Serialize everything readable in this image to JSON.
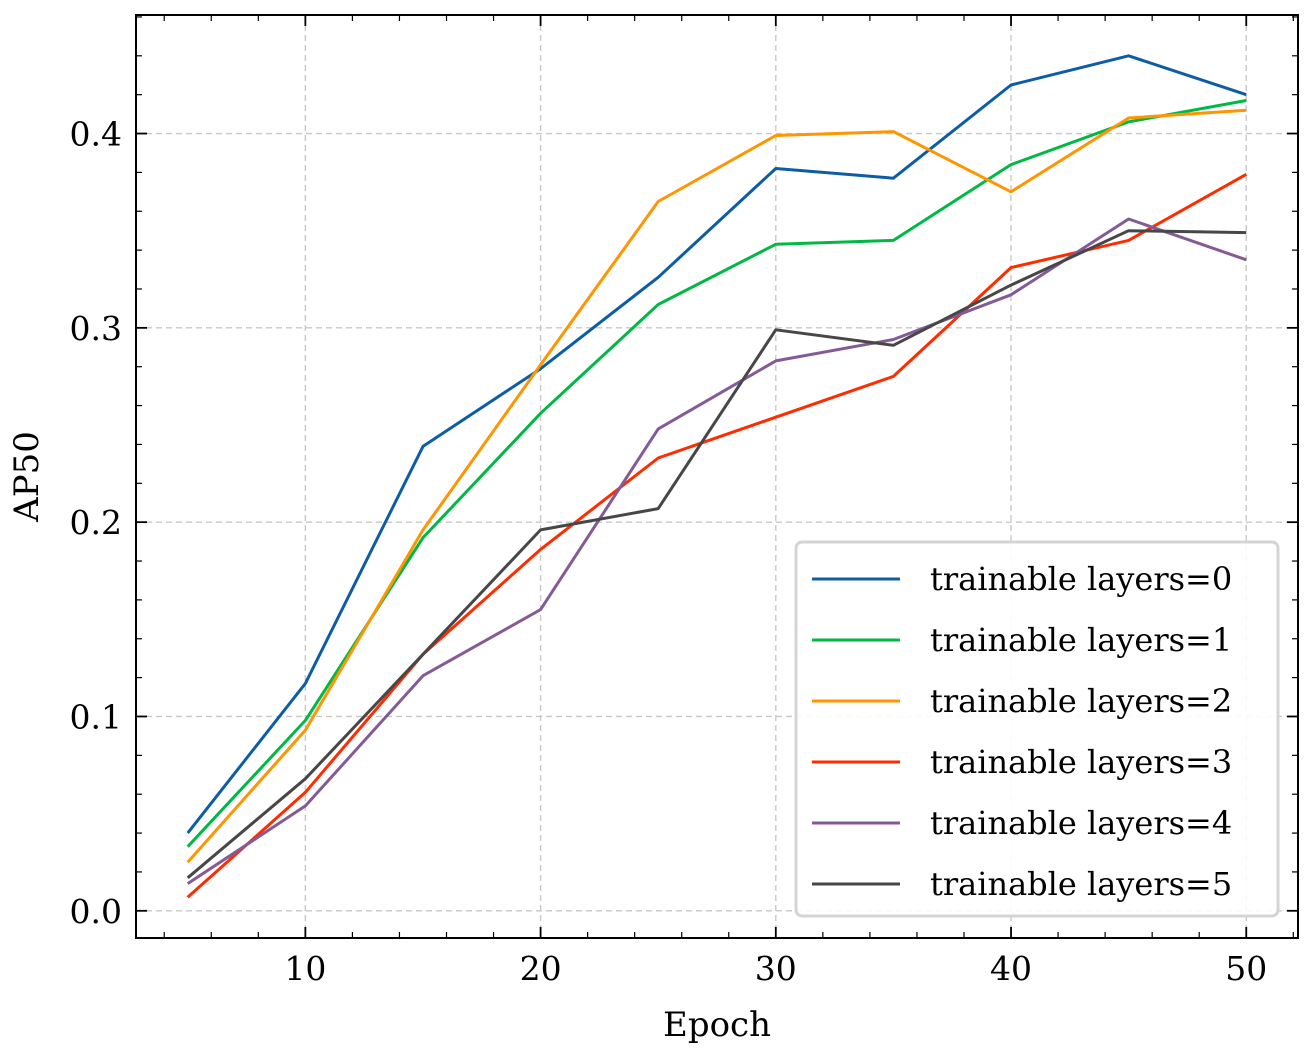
{
  "chart_data": {
    "type": "line",
    "title": "",
    "xlabel": "Epoch",
    "ylabel": "AP50",
    "xlim": [
      2.8,
      52.2
    ],
    "ylim": [
      -0.014,
      0.461
    ],
    "xticks": [
      10,
      20,
      30,
      40,
      50
    ],
    "xtick_labels": [
      "10",
      "20",
      "30",
      "40",
      "50"
    ],
    "yticks": [
      0.0,
      0.1,
      0.2,
      0.3,
      0.4
    ],
    "ytick_labels": [
      "0.0",
      "0.1",
      "0.2",
      "0.3",
      "0.4"
    ],
    "grid": true,
    "legend_position": "lower-right",
    "x": [
      5,
      10,
      15,
      20,
      25,
      30,
      35,
      40,
      45,
      50
    ],
    "series": [
      {
        "name": "trainable layers=0",
        "color": "#0c5da5",
        "values": [
          0.04,
          0.117,
          0.239,
          0.279,
          0.326,
          0.382,
          0.377,
          0.425,
          0.44,
          0.42
        ]
      },
      {
        "name": "trainable layers=1",
        "color": "#00b945",
        "values": [
          0.033,
          0.098,
          0.192,
          0.256,
          0.312,
          0.343,
          0.345,
          0.384,
          0.406,
          0.417
        ]
      },
      {
        "name": "trainable layers=2",
        "color": "#ff9500",
        "values": [
          0.025,
          0.093,
          0.196,
          0.281,
          0.365,
          0.399,
          0.401,
          0.37,
          0.408,
          0.412
        ]
      },
      {
        "name": "trainable layers=3",
        "color": "#ff2c00",
        "values": [
          0.007,
          0.061,
          0.132,
          0.186,
          0.233,
          0.254,
          0.275,
          0.331,
          0.345,
          0.379
        ]
      },
      {
        "name": "trainable layers=4",
        "color": "#845b97",
        "values": [
          0.014,
          0.054,
          0.121,
          0.155,
          0.248,
          0.283,
          0.294,
          0.317,
          0.356,
          0.335
        ]
      },
      {
        "name": "trainable layers=5",
        "color": "#474747",
        "values": [
          0.017,
          0.068,
          0.132,
          0.196,
          0.207,
          0.299,
          0.291,
          0.322,
          0.35,
          0.349
        ]
      }
    ]
  }
}
